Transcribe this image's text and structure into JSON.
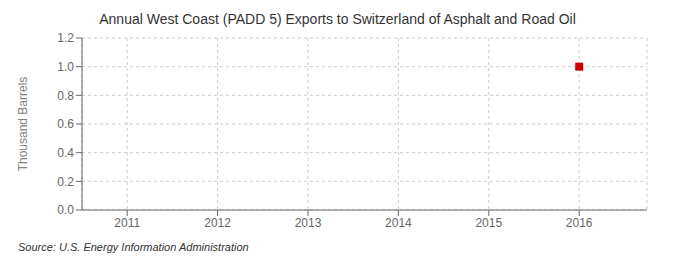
{
  "chart_data": {
    "type": "scatter",
    "title": "Annual West Coast (PADD 5) Exports to Switzerland of Asphalt and Road Oil",
    "ylabel": "Thousand Barrels",
    "source": "Source: U.S. Energy Information Administration",
    "x": [
      2016
    ],
    "values": [
      1.0
    ],
    "color": "#cc0000",
    "marker": "square",
    "xlim": [
      2010.5,
      2016.75
    ],
    "ylim": [
      0.0,
      1.2
    ],
    "xticks": [
      2011,
      2012,
      2013,
      2014,
      2015,
      2016
    ],
    "yticks": [
      {
        "value": 0,
        "label": "0.0"
      },
      0.2,
      0.4,
      0.6,
      0.8,
      {
        "value": 1,
        "label": "1.0"
      },
      1.2
    ],
    "grid": true
  }
}
